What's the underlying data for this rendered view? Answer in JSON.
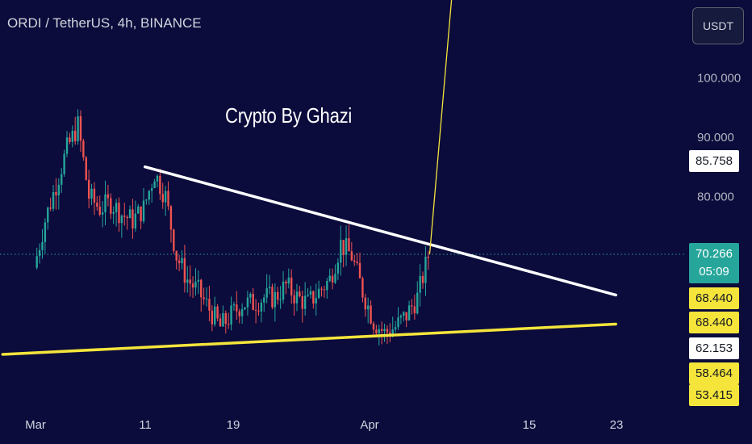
{
  "header": {
    "title": "ORDI / TetherUS, 4h, BINANCE"
  },
  "currency_button": {
    "label": "USDT"
  },
  "watermark": {
    "text": "Crypto By Ghazi"
  },
  "colors": {
    "background": "#0b0b3c",
    "up": "#26a69a",
    "down": "#ef5350",
    "resistance": "#ffffff",
    "support": "#f5e53b",
    "target": "#f5e53b"
  },
  "price_labels": [
    {
      "value": "85.758",
      "bg": "#ffffff",
      "fg": "#131722",
      "price": 85.758
    },
    {
      "value": "70.266",
      "sub": "05:09",
      "bg": "#26a69a",
      "fg": "#ffffff",
      "price": 70.266
    },
    {
      "value": "68.440",
      "bg": "#f5e53b",
      "fg": "#131722",
      "price": 68.44,
      "offset": "upper"
    },
    {
      "value": "68.440",
      "bg": "#f5e53b",
      "fg": "#131722",
      "price": 68.44,
      "offset": "lower"
    },
    {
      "value": "62.153",
      "bg": "#ffffff",
      "fg": "#131722",
      "price": 62.153
    },
    {
      "value": "58.464",
      "bg": "#f5e53b",
      "fg": "#131722",
      "price": 58.464
    },
    {
      "value": "53.415",
      "bg": "#f5e53b",
      "fg": "#131722",
      "price": 53.415
    }
  ],
  "chart_data": {
    "type": "candlestick",
    "symbol": "ORDI / TetherUS",
    "interval": "4h",
    "exchange": "BINANCE",
    "last_price": 70.266,
    "countdown": "05:09",
    "y_ticks": [
      {
        "label": "100.000",
        "value": 100
      },
      {
        "label": "90.000",
        "value": 90
      },
      {
        "label": "80.000",
        "value": 80
      }
    ],
    "x_ticks": [
      "Mar",
      "11",
      "19",
      "Apr",
      "15",
      "23"
    ],
    "price_path": [
      {
        "date": "Mar 1",
        "price": 68
      },
      {
        "date": "Mar 2",
        "price": 76
      },
      {
        "date": "Mar 3",
        "price": 82
      },
      {
        "date": "Mar 4",
        "price": 88
      },
      {
        "date": "Mar 5",
        "price": 92
      },
      {
        "date": "Mar 6",
        "price": 80
      },
      {
        "date": "Mar 7",
        "price": 78
      },
      {
        "date": "Mar 8",
        "price": 79
      },
      {
        "date": "Mar 9",
        "price": 77
      },
      {
        "date": "Mar 10",
        "price": 76
      },
      {
        "date": "Mar 11",
        "price": 78
      },
      {
        "date": "Mar 12",
        "price": 84
      },
      {
        "date": "Mar 13",
        "price": 80
      },
      {
        "date": "Mar 14",
        "price": 70
      },
      {
        "date": "Mar 15",
        "price": 66
      },
      {
        "date": "Mar 16",
        "price": 64
      },
      {
        "date": "Mar 17",
        "price": 61
      },
      {
        "date": "Mar 18",
        "price": 58
      },
      {
        "date": "Mar 19",
        "price": 60
      },
      {
        "date": "Mar 20",
        "price": 62
      },
      {
        "date": "Mar 21",
        "price": 62
      },
      {
        "date": "Mar 22",
        "price": 63
      },
      {
        "date": "Mar 23",
        "price": 63
      },
      {
        "date": "Mar 24",
        "price": 65
      },
      {
        "date": "Mar 25",
        "price": 63
      },
      {
        "date": "Mar 26",
        "price": 62
      },
      {
        "date": "Mar 27",
        "price": 64
      },
      {
        "date": "Mar 28",
        "price": 66
      },
      {
        "date": "Mar 29",
        "price": 72
      },
      {
        "date": "Mar 30",
        "price": 70
      },
      {
        "date": "Mar 31",
        "price": 64
      },
      {
        "date": "Apr 1",
        "price": 59
      },
      {
        "date": "Apr 2",
        "price": 57
      },
      {
        "date": "Apr 3",
        "price": 58
      },
      {
        "date": "Apr 4",
        "price": 60
      },
      {
        "date": "Apr 5",
        "price": 63
      },
      {
        "date": "Apr 6",
        "price": 70
      }
    ],
    "trendlines": [
      {
        "name": "resistance",
        "from": {
          "date": "Mar 11",
          "price": 85
        },
        "to": {
          "date": "Apr 23",
          "price": 63.4
        }
      },
      {
        "name": "support",
        "from": {
          "date": "Feb 27",
          "price": 53.4
        },
        "to": {
          "date": "Apr 23",
          "price": 58.5
        }
      }
    ],
    "target_arrow": {
      "from": {
        "date": "Apr 6",
        "price": 70.3
      },
      "to": {
        "date": "Apr 8",
        "price": 118
      }
    },
    "grid": false,
    "legend": "none"
  }
}
